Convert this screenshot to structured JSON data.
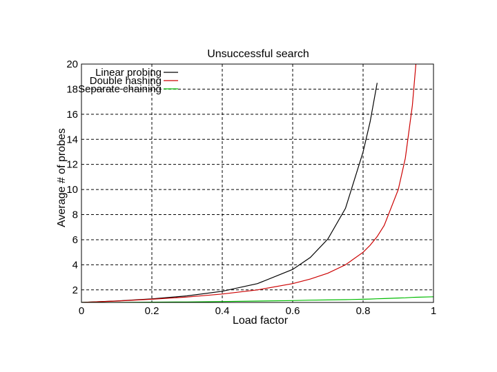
{
  "chart_data": {
    "type": "line",
    "title": "Unsuccessful search",
    "xlabel": "Load factor",
    "ylabel": "Average # of probes",
    "xlim": [
      0,
      1
    ],
    "ylim": [
      1,
      20
    ],
    "xticks": [
      0,
      0.2,
      0.4,
      0.6,
      0.8,
      1
    ],
    "xtick_labels": [
      "0",
      "0.2",
      "0.4",
      "0.6",
      "0.8",
      "1"
    ],
    "yticks": [
      2,
      4,
      6,
      8,
      10,
      12,
      14,
      16,
      18,
      20
    ],
    "ytick_labels": [
      "2",
      "4",
      "6",
      "8",
      "10",
      "12",
      "14",
      "16",
      "18",
      "20"
    ],
    "grid": true,
    "legend_position": "top-left",
    "x": [
      0,
      0.1,
      0.2,
      0.3,
      0.4,
      0.5,
      0.6,
      0.65,
      0.7,
      0.75,
      0.8,
      0.82,
      0.84,
      0.86,
      0.9,
      0.92,
      0.94,
      0.95,
      1.0
    ],
    "series": [
      {
        "name": "Linear probing",
        "color": "#000000",
        "values": [
          1.0,
          1.12,
          1.28,
          1.52,
          1.89,
          2.5,
          3.63,
          4.58,
          6.06,
          8.5,
          13.0,
          15.4,
          18.5,
          null,
          null,
          null,
          null,
          null,
          null
        ]
      },
      {
        "name": "Double hashing",
        "color": "#cc0000",
        "values": [
          1.0,
          1.11,
          1.25,
          1.43,
          1.67,
          2.0,
          2.5,
          2.86,
          3.33,
          4.0,
          5.0,
          5.56,
          6.25,
          7.14,
          10.0,
          12.5,
          16.7,
          20.0,
          null
        ]
      },
      {
        "name": "Separate chaining",
        "color": "#00bb00",
        "values": [
          1.0,
          1.0,
          1.02,
          1.04,
          1.07,
          1.11,
          1.15,
          1.18,
          1.2,
          1.22,
          1.25,
          1.27,
          1.29,
          1.31,
          1.35,
          1.37,
          1.4,
          1.41,
          1.45
        ]
      }
    ]
  }
}
